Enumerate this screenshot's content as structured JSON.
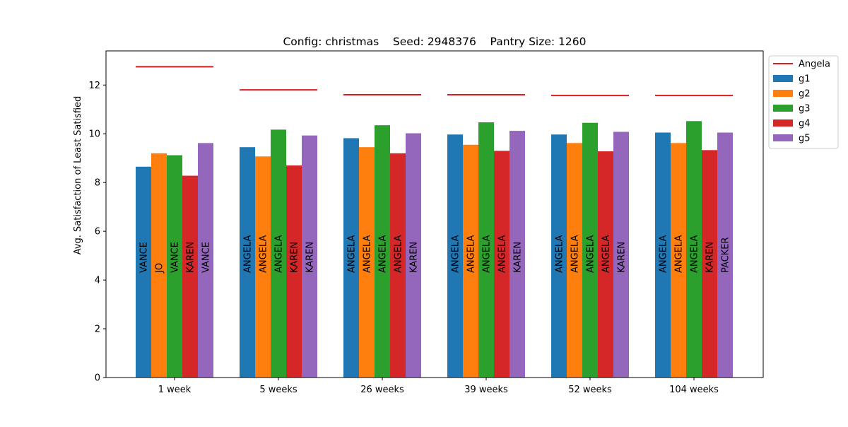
{
  "chart_data": {
    "type": "bar",
    "title": "Config: christmas    Seed: 2948376    Pantry Size: 1260",
    "xlabel": "",
    "ylabel": "Avg. Satisfaction of Least Satisfied",
    "ylim": [
      0,
      13.4
    ],
    "yticks": [
      0,
      2,
      4,
      6,
      8,
      10,
      12
    ],
    "grid": false,
    "legend_position": "upper-right-outside",
    "categories": [
      "1 week",
      "5 weeks",
      "26 weeks",
      "39 weeks",
      "52 weeks",
      "104 weeks"
    ],
    "series": [
      {
        "name": "g1",
        "color": "#1f77b4",
        "values": [
          8.65,
          9.45,
          9.82,
          9.97,
          9.97,
          10.05
        ],
        "bar_labels": [
          "VANCE",
          "ANGELA",
          "ANGELA",
          "ANGELA",
          "ANGELA",
          "ANGELA"
        ]
      },
      {
        "name": "g2",
        "color": "#ff7f0e",
        "values": [
          9.2,
          9.07,
          9.45,
          9.55,
          9.62,
          9.62
        ],
        "bar_labels": [
          "JO",
          "ANGELA",
          "ANGELA",
          "ANGELA",
          "ANGELA",
          "ANGELA"
        ]
      },
      {
        "name": "g3",
        "color": "#2ca02c",
        "values": [
          9.12,
          10.17,
          10.35,
          10.47,
          10.45,
          10.52
        ],
        "bar_labels": [
          "VANCE",
          "ANGELA",
          "ANGELA",
          "ANGELA",
          "ANGELA",
          "ANGELA"
        ]
      },
      {
        "name": "g4",
        "color": "#d62728",
        "values": [
          8.28,
          8.7,
          9.2,
          9.3,
          9.28,
          9.33
        ],
        "bar_labels": [
          "KAREN",
          "KAREN",
          "ANGELA",
          "ANGELA",
          "ANGELA",
          "KAREN"
        ]
      },
      {
        "name": "g5",
        "color": "#9467bd",
        "values": [
          9.62,
          9.93,
          10.02,
          10.12,
          10.08,
          10.05
        ],
        "bar_labels": [
          "VANCE",
          "KAREN",
          "KAREN",
          "KAREN",
          "KAREN",
          "PACKER"
        ]
      }
    ],
    "reference_line": {
      "name": "Angela",
      "color": "#e31a1c",
      "values": [
        12.75,
        11.8,
        11.6,
        11.6,
        11.57,
        11.57
      ]
    }
  }
}
